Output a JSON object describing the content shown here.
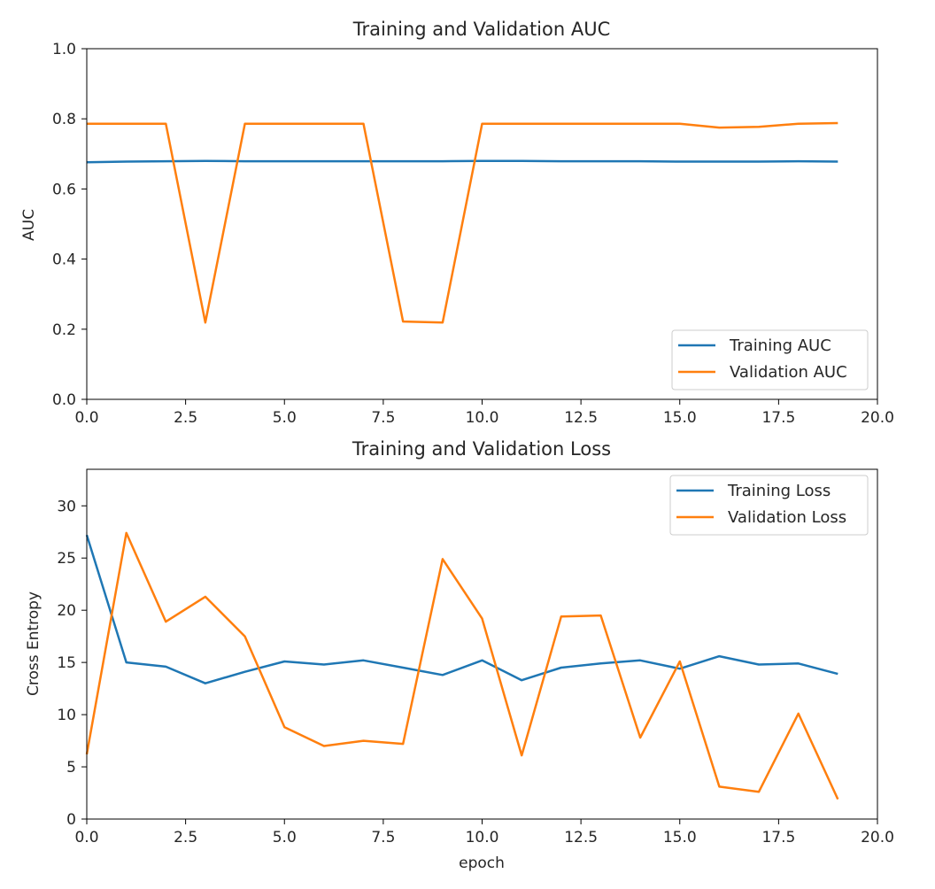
{
  "chart_data": [
    {
      "type": "line",
      "title": "Training and Validation AUC",
      "xlabel": "",
      "ylabel": "AUC",
      "xlim": [
        0,
        20
      ],
      "ylim": [
        0,
        1
      ],
      "xticks": [
        "0.0",
        "2.5",
        "5.0",
        "7.5",
        "10.0",
        "12.5",
        "15.0",
        "17.5",
        "20.0"
      ],
      "yticks": [
        "0.0",
        "0.2",
        "0.4",
        "0.6",
        "0.8",
        "1.0"
      ],
      "legend_position": "lower-right",
      "grid": false,
      "x": [
        0,
        1,
        2,
        3,
        4,
        5,
        6,
        7,
        8,
        9,
        10,
        11,
        12,
        13,
        14,
        15,
        16,
        17,
        18,
        19
      ],
      "series": [
        {
          "name": "Training AUC",
          "color": "#1f77b4",
          "values": [
            0.676,
            0.678,
            0.679,
            0.68,
            0.679,
            0.679,
            0.679,
            0.679,
            0.679,
            0.679,
            0.68,
            0.68,
            0.679,
            0.679,
            0.679,
            0.678,
            0.678,
            0.678,
            0.679,
            0.678
          ]
        },
        {
          "name": "Validation AUC",
          "color": "#ff7f0e",
          "values": [
            0.786,
            0.786,
            0.786,
            0.219,
            0.786,
            0.786,
            0.786,
            0.786,
            0.222,
            0.219,
            0.786,
            0.786,
            0.786,
            0.786,
            0.786,
            0.786,
            0.775,
            0.777,
            0.786,
            0.788
          ]
        }
      ]
    },
    {
      "type": "line",
      "title": "Training and Validation Loss",
      "xlabel": "epoch",
      "ylabel": "Cross Entropy",
      "xlim": [
        0,
        20
      ],
      "ylim": [
        0,
        33.5
      ],
      "xticks": [
        "0.0",
        "2.5",
        "5.0",
        "7.5",
        "10.0",
        "12.5",
        "15.0",
        "17.5",
        "20.0"
      ],
      "yticks": [
        "0",
        "5",
        "10",
        "15",
        "20",
        "25",
        "30"
      ],
      "legend_position": "upper-right",
      "grid": false,
      "x": [
        0,
        1,
        2,
        3,
        4,
        5,
        6,
        7,
        8,
        9,
        10,
        11,
        12,
        13,
        14,
        15,
        16,
        17,
        18,
        19
      ],
      "series": [
        {
          "name": "Training Loss",
          "color": "#1f77b4",
          "values": [
            27.2,
            15.0,
            14.6,
            13.0,
            14.1,
            15.1,
            14.8,
            15.2,
            14.5,
            13.8,
            15.2,
            13.3,
            14.5,
            14.9,
            15.2,
            14.4,
            15.6,
            14.8,
            14.9,
            13.9
          ]
        },
        {
          "name": "Validation Loss",
          "color": "#ff7f0e",
          "values": [
            6.2,
            27.4,
            18.9,
            21.3,
            17.5,
            8.8,
            7.0,
            7.5,
            7.2,
            24.9,
            19.2,
            6.1,
            19.4,
            19.5,
            7.8,
            15.1,
            3.1,
            2.6,
            10.1,
            1.9
          ]
        }
      ]
    }
  ]
}
